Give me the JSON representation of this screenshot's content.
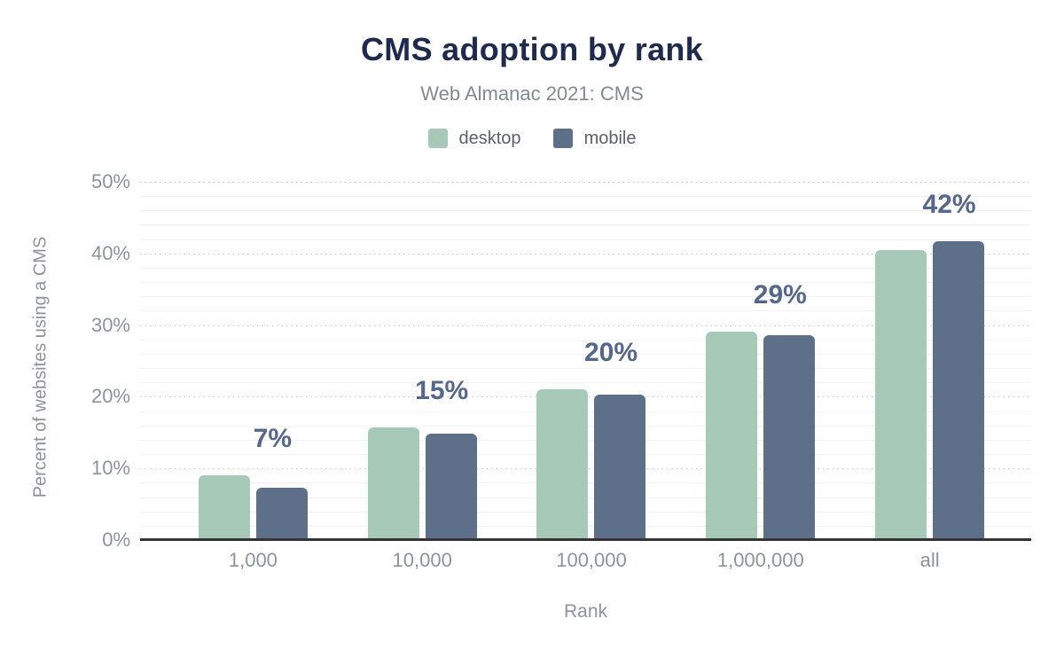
{
  "page": {
    "background": "#ffffff"
  },
  "chart_data": {
    "type": "bar",
    "title": "CMS adoption by rank",
    "subtitle": "Web Almanac 2021: CMS",
    "xlabel": "Rank",
    "ylabel": "Percent of websites using a CMS",
    "categories": [
      "1,000",
      "10,000",
      "100,000",
      "1,000,000",
      "all"
    ],
    "series": [
      {
        "name": "desktop",
        "color": "#a6c9b8",
        "values": [
          9.0,
          15.7,
          21.1,
          29.1,
          40.5
        ]
      },
      {
        "name": "mobile",
        "color": "#5e7089",
        "values": [
          7.3,
          14.9,
          20.3,
          28.6,
          41.7
        ]
      }
    ],
    "annotations": [
      "7%",
      "15%",
      "20%",
      "29%",
      "42%"
    ],
    "annotation_color": "#55688c",
    "ylim": [
      0,
      50
    ],
    "yticks": [
      {
        "label": "0%",
        "value": 0
      },
      {
        "label": "10%",
        "value": 10
      },
      {
        "label": "20%",
        "value": 20
      },
      {
        "label": "30%",
        "value": 30
      },
      {
        "label": "40%",
        "value": 40
      },
      {
        "label": "50%",
        "value": 50
      }
    ],
    "grid": {
      "minor_step": 2,
      "major_step": 10,
      "major_style": "dotted",
      "minor_style": "solid"
    },
    "legend_position": "top",
    "colors": {
      "title": "#1e2b4d",
      "subtitle": "#85898f",
      "axis_text": "#8d939d",
      "axis_line": "#323237",
      "legend_text": "#5c6168"
    }
  }
}
